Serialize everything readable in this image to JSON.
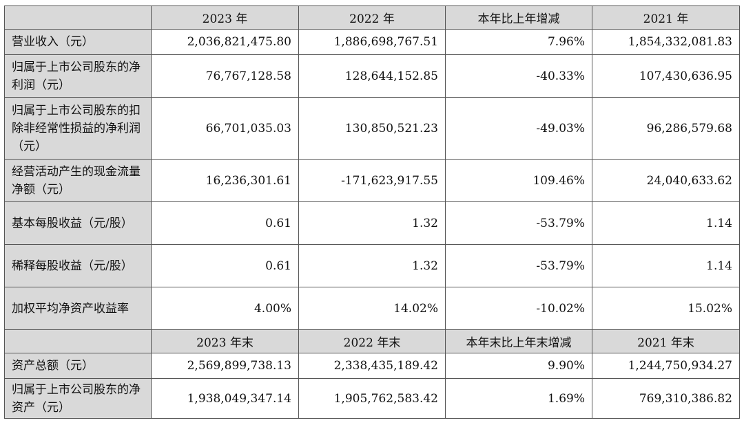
{
  "header1": [
    "",
    "2023 年",
    "2022 年",
    "本年比上年增减",
    "2021 年"
  ],
  "rows1": [
    {
      "label": "营业收入（元）",
      "values": [
        "2,036,821,475.80",
        "1,886,698,767.51",
        "7.96%",
        "1,854,332,081.83"
      ]
    },
    {
      "label": "归属于上市公司股东的净利润（元）",
      "values": [
        "76,767,128.58",
        "128,644,152.85",
        "-40.33%",
        "107,430,636.95"
      ]
    },
    {
      "label": "归属于上市公司股东的扣除非经常性损益的净利润（元）",
      "values": [
        "66,701,035.03",
        "130,850,521.23",
        "-49.03%",
        "96,286,579.68"
      ]
    },
    {
      "label": "经营活动产生的现金流量净额（元）",
      "values": [
        "16,236,301.61",
        "-171,623,917.55",
        "109.46%",
        "24,040,633.62"
      ]
    },
    {
      "label": "基本每股收益（元/股）",
      "values": [
        "0.61",
        "1.32",
        "-53.79%",
        "1.14"
      ]
    },
    {
      "label": "稀释每股收益（元/股）",
      "values": [
        "0.61",
        "1.32",
        "-53.79%",
        "1.14"
      ]
    },
    {
      "label": "加权平均净资产收益率",
      "values": [
        "4.00%",
        "14.02%",
        "-10.02%",
        "15.02%"
      ]
    }
  ],
  "header2": [
    "",
    "2023 年末",
    "2022 年末",
    "本年末比上年末增减",
    "2021 年末"
  ],
  "rows2": [
    {
      "label": "资产总额（元）",
      "values": [
        "2,569,899,738.13",
        "2,338,435,189.42",
        "9.90%",
        "1,244,750,934.27"
      ]
    },
    {
      "label": "归属于上市公司股东的净资产（元）",
      "values": [
        "1,938,049,347.14",
        "1,905,762,583.42",
        "1.69%",
        "769,310,386.82"
      ]
    }
  ]
}
